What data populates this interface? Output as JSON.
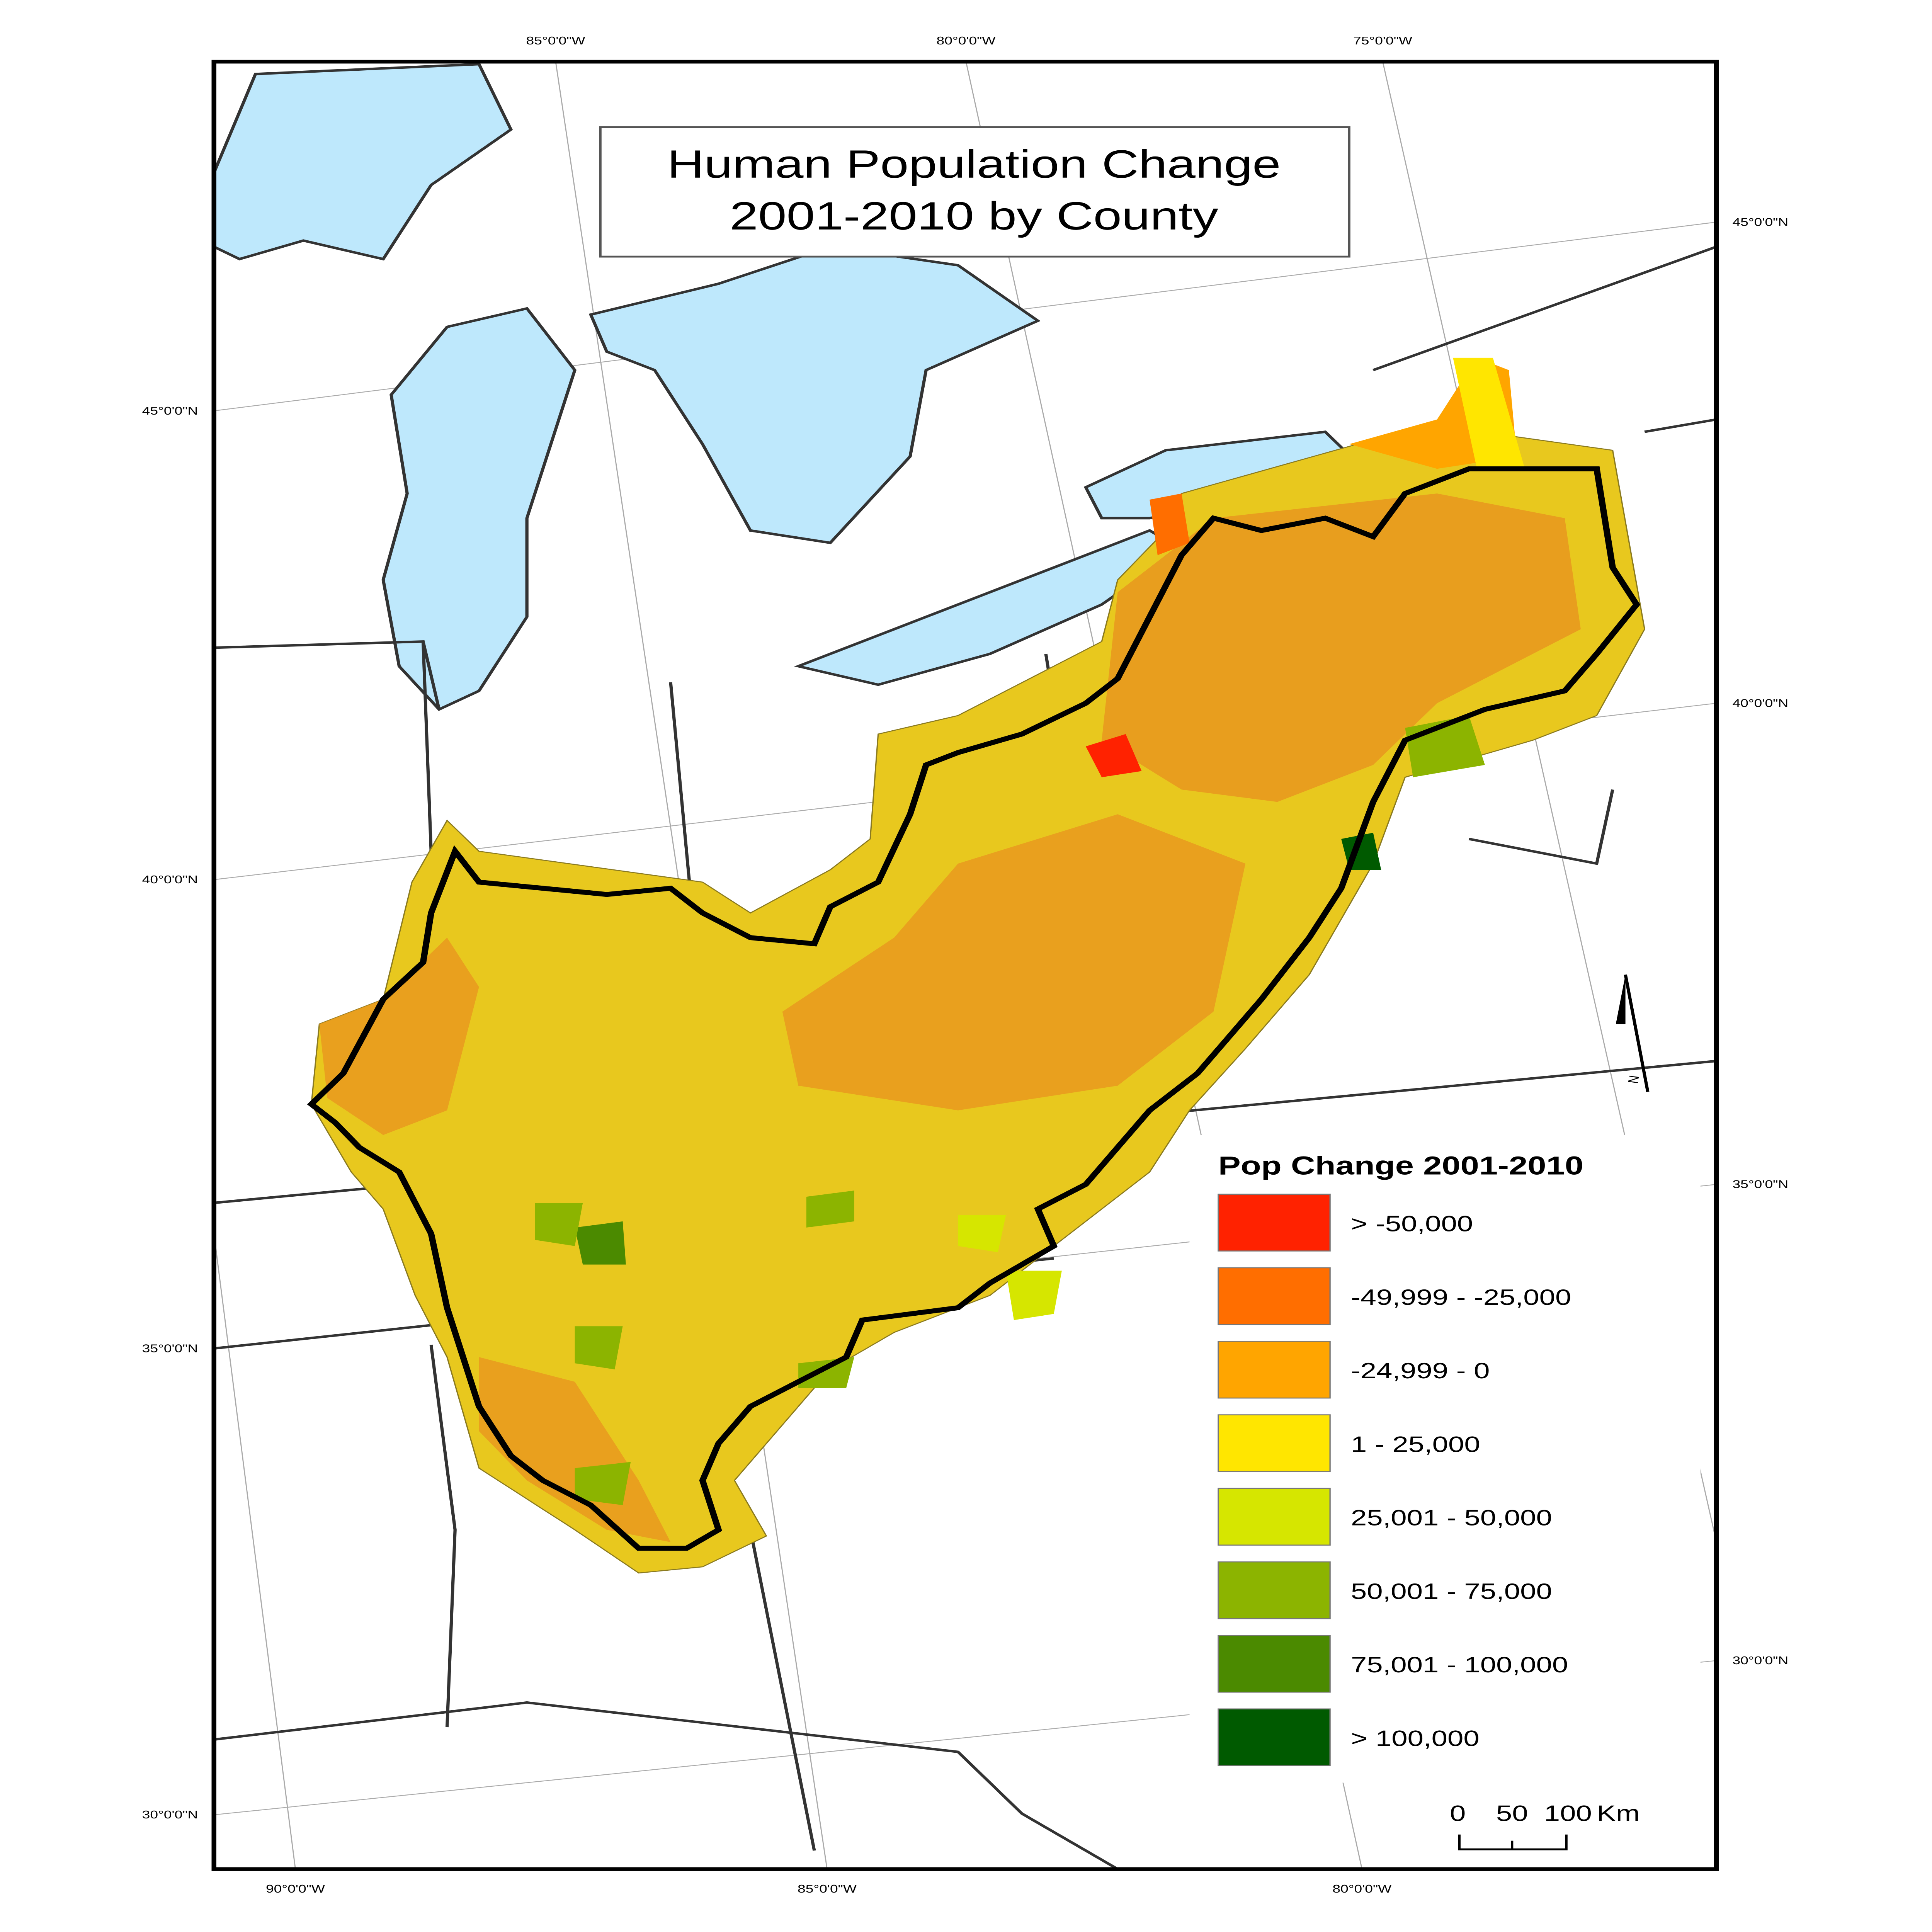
{
  "title": {
    "line1": "Human Population Change",
    "line2": "2001-2010 by County"
  },
  "graticule": {
    "top": [
      "85°0'0\"W",
      "80°0'0\"W",
      "75°0'0\"W"
    ],
    "bottom": [
      "90°0'0\"W",
      "85°0'0\"W",
      "80°0'0\"W"
    ],
    "left": [
      "45°0'0\"N",
      "40°0'0\"N",
      "35°0'0\"N",
      "30°0'0\"N"
    ],
    "right": [
      "45°0'0\"N",
      "40°0'0\"N",
      "35°0'0\"N",
      "30°0'0\"N"
    ]
  },
  "legend": {
    "title": "Pop Change 2001-2010",
    "classes": [
      {
        "label": "> -50,000",
        "color": "#ff2200"
      },
      {
        "label": "-49,999 - -25,000",
        "color": "#ff6e00"
      },
      {
        "label": "-24,999 - 0",
        "color": "#ffa500"
      },
      {
        "label": "1 - 25,000",
        "color": "#ffe600"
      },
      {
        "label": "25,001 - 50,000",
        "color": "#d6e600"
      },
      {
        "label": "50,001 - 75,000",
        "color": "#8cb400"
      },
      {
        "label": "75,001 - 100,000",
        "color": "#4b8a00"
      },
      {
        "label": "> 100,000",
        "color": "#005a00"
      }
    ]
  },
  "scale_bar": {
    "ticks": [
      "0",
      "50",
      "100"
    ],
    "unit": "Km"
  },
  "north_arrow": {
    "label": "N"
  },
  "colors": {
    "water": "#bee8fc",
    "boundary": "#000000"
  }
}
